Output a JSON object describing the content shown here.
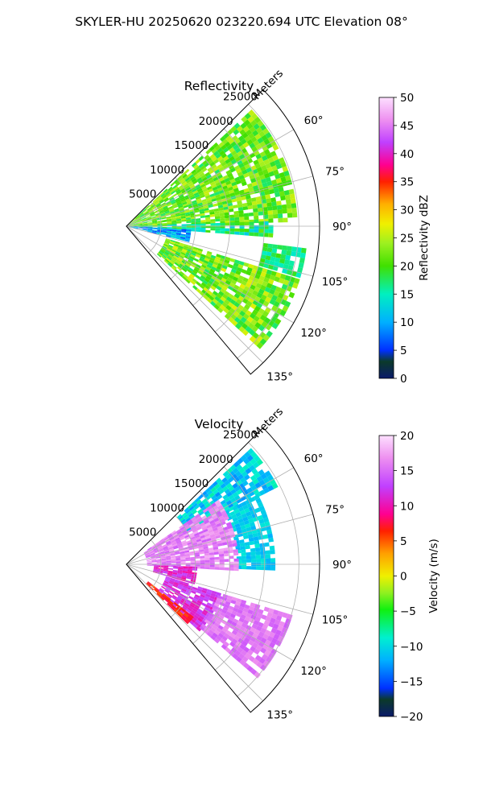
{
  "suptitle": "SKYLER-HU  20250620  023220.694 UTC Elevation 08°",
  "chart_data": [
    {
      "type": "heatmap",
      "title": "Reflectivity",
      "projection": "polar-sector",
      "radial_axis_label": "Meters",
      "radial_ticks": [
        5000,
        10000,
        15000,
        20000,
        25000
      ],
      "radial_tick_labels": [
        "5000",
        "10000",
        "15000",
        "20000",
        "25000"
      ],
      "radial_max": 28000,
      "azimuth_range": [
        45,
        140
      ],
      "azimuth_ticks": [
        60,
        75,
        90,
        105,
        120,
        135
      ],
      "azimuth_tick_labels": [
        "60°",
        "75°",
        "90°",
        "105°",
        "120°",
        "135°"
      ],
      "grid": true,
      "colorbar": {
        "label": "Reflectivity dBZ",
        "range": [
          0,
          50
        ],
        "ticks": [
          0,
          5,
          10,
          15,
          20,
          25,
          30,
          35,
          40,
          45,
          50
        ],
        "tick_labels": [
          "0",
          "5",
          "10",
          "15",
          "20",
          "25",
          "30",
          "35",
          "40",
          "45",
          "50"
        ]
      },
      "regions": [
        {
          "az_start": 47,
          "az_end": 88,
          "r_start": 0,
          "r_end": 24500,
          "value_low": 17,
          "value_high": 26
        },
        {
          "az_start": 88,
          "az_end": 93,
          "r_start": 0,
          "r_end": 21000,
          "value_low": 12,
          "value_high": 22
        },
        {
          "az_start": 93,
          "az_end": 103,
          "r_start": 0,
          "r_end": 9000,
          "value_low": 5,
          "value_high": 14
        },
        {
          "az_start": 97,
          "az_end": 105,
          "r_start": 20000,
          "r_end": 26000,
          "value_low": 14,
          "value_high": 20
        },
        {
          "az_start": 107,
          "az_end": 132,
          "r_start": 6000,
          "r_end": 26000,
          "value_low": 17,
          "value_high": 27
        }
      ]
    },
    {
      "type": "heatmap",
      "title": "Velocity",
      "projection": "polar-sector",
      "radial_axis_label": "Meters",
      "radial_ticks": [
        5000,
        10000,
        15000,
        20000,
        25000
      ],
      "radial_tick_labels": [
        "5000",
        "10000",
        "15000",
        "20000",
        "25000"
      ],
      "radial_max": 28000,
      "azimuth_range": [
        45,
        140
      ],
      "azimuth_ticks": [
        60,
        75,
        90,
        105,
        120,
        135
      ],
      "azimuth_tick_labels": [
        "60°",
        "75°",
        "90°",
        "105°",
        "120°",
        "135°"
      ],
      "grid": true,
      "colorbar": {
        "label": "Velocity (m/s)",
        "range": [
          -20,
          20
        ],
        "ticks": [
          -20,
          -15,
          -10,
          -5,
          0,
          5,
          10,
          15,
          20
        ],
        "tick_labels": [
          "−20",
          "−15",
          "−10",
          "−5",
          "0",
          "5",
          "10",
          "15",
          "20"
        ]
      },
      "regions": [
        {
          "az_start": 47,
          "az_end": 62,
          "r_start": 10000,
          "r_end": 24500,
          "value_low": -13,
          "value_high": -8
        },
        {
          "az_start": 62,
          "az_end": 92,
          "r_start": 16000,
          "r_end": 21000,
          "value_low": -12,
          "value_high": -9
        },
        {
          "az_start": 55,
          "az_end": 92,
          "r_start": 3000,
          "r_end": 16000,
          "value_low": 14,
          "value_high": 18
        },
        {
          "az_start": 92,
          "az_end": 105,
          "r_start": 4000,
          "r_end": 10000,
          "value_low": 9,
          "value_high": 13
        },
        {
          "az_start": 107,
          "az_end": 132,
          "r_start": 6000,
          "r_end": 14000,
          "value_low": 10,
          "value_high": 14
        },
        {
          "az_start": 107,
          "az_end": 130,
          "r_start": 14000,
          "r_end": 25000,
          "value_low": 14,
          "value_high": 17
        },
        {
          "az_start": 128,
          "az_end": 133,
          "r_start": 4000,
          "r_end": 12000,
          "value_low": 5,
          "value_high": 8
        }
      ]
    }
  ]
}
